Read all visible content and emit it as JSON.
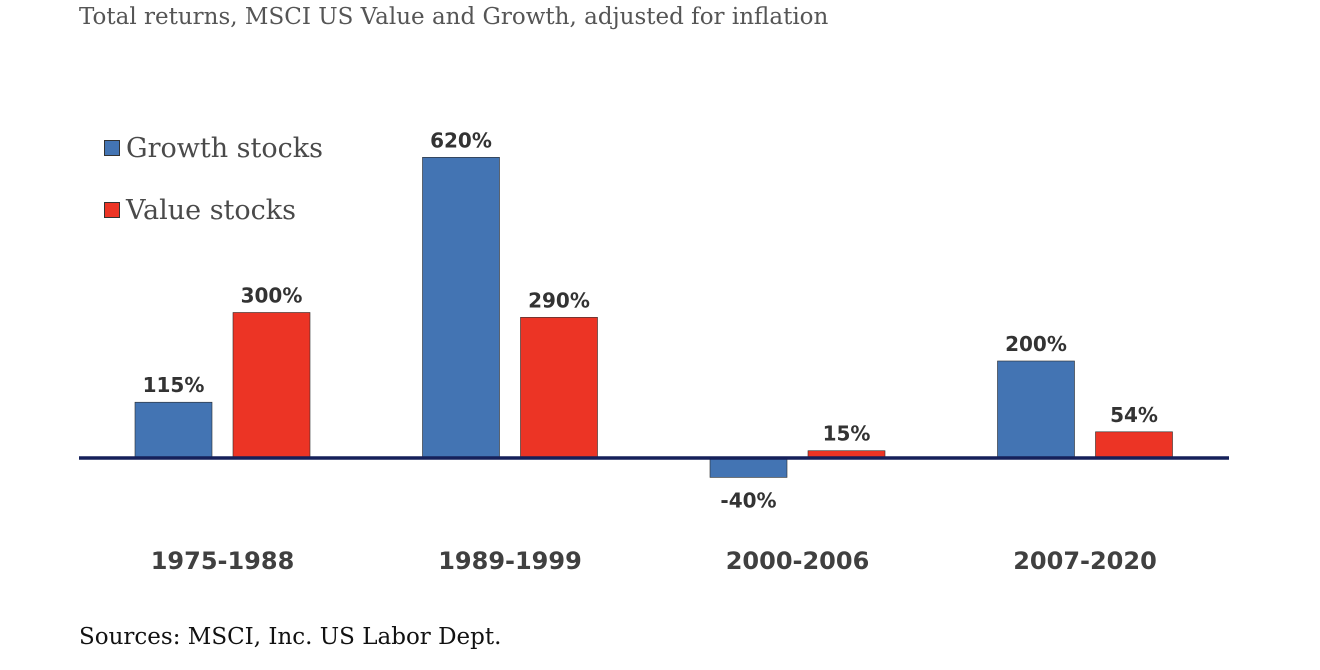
{
  "title": "Total returns, MSCI US Value and Growth, adjusted for inflation",
  "source": "Sources: MSCI, Inc. US Labor Dept.",
  "colors": {
    "growth": "#4374b3",
    "value": "#ec3425",
    "axis": "#15205a"
  },
  "chart_data": {
    "type": "bar",
    "categories": [
      "1975-1988",
      "1989-1999",
      "2000-2006",
      "2007-2020"
    ],
    "series": [
      {
        "name": "Growth stocks",
        "values": [
          115,
          620,
          -40,
          200
        ],
        "labels": [
          "115%",
          "620%",
          "-40%",
          "200%"
        ]
      },
      {
        "name": "Value stocks",
        "values": [
          300,
          290,
          15,
          54
        ],
        "labels": [
          "300%",
          "290%",
          "15%",
          "54%"
        ]
      }
    ],
    "ylabel": "",
    "xlabel": "",
    "legend": "top-left"
  }
}
